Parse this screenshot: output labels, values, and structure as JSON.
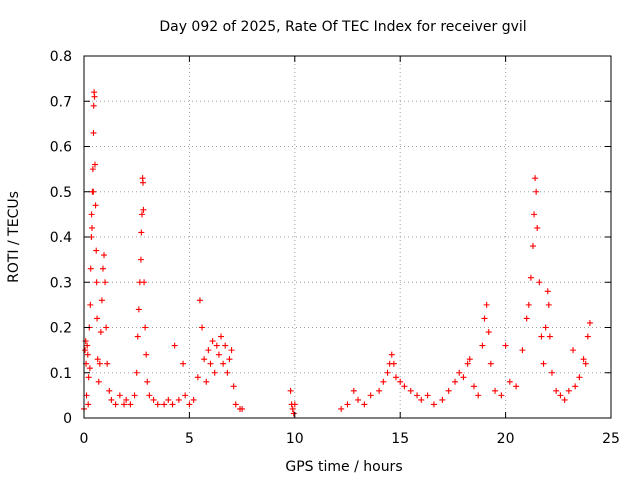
{
  "chart_data": {
    "type": "scatter",
    "title": "Day 092 of 2025, Rate Of TEC Index for receiver gvil",
    "xlabel": "GPS time / hours",
    "ylabel": "ROTI / TECUs",
    "xlim": [
      0,
      25
    ],
    "ylim": [
      0,
      0.8
    ],
    "xticks": [
      0,
      5,
      10,
      15,
      20,
      25
    ],
    "xtick_labels": [
      "0",
      "5",
      "10",
      "15",
      "20",
      "25"
    ],
    "yticks": [
      0,
      0.1,
      0.2,
      0.3,
      0.4,
      0.5,
      0.6,
      0.7,
      0.8
    ],
    "ytick_labels": [
      "0",
      "0.1",
      "0.2",
      "0.3",
      "0.4",
      "0.5",
      "0.6",
      "0.7",
      "0.8"
    ],
    "grid": true,
    "marker": "+",
    "color": "#ff0000",
    "series": [
      {
        "name": "ROTI",
        "points": [
          [
            0.0,
            0.02
          ],
          [
            0.05,
            0.15
          ],
          [
            0.08,
            0.17
          ],
          [
            0.1,
            0.12
          ],
          [
            0.12,
            0.05
          ],
          [
            0.15,
            0.16
          ],
          [
            0.18,
            0.14
          ],
          [
            0.2,
            0.03
          ],
          [
            0.22,
            0.09
          ],
          [
            0.25,
            0.2
          ],
          [
            0.28,
            0.11
          ],
          [
            0.3,
            0.25
          ],
          [
            0.32,
            0.33
          ],
          [
            0.35,
            0.4
          ],
          [
            0.36,
            0.45
          ],
          [
            0.38,
            0.42
          ],
          [
            0.4,
            0.5
          ],
          [
            0.42,
            0.55
          ],
          [
            0.44,
            0.5
          ],
          [
            0.45,
            0.63
          ],
          [
            0.46,
            0.69
          ],
          [
            0.48,
            0.72
          ],
          [
            0.5,
            0.71
          ],
          [
            0.52,
            0.56
          ],
          [
            0.55,
            0.47
          ],
          [
            0.58,
            0.37
          ],
          [
            0.6,
            0.3
          ],
          [
            0.62,
            0.22
          ],
          [
            0.65,
            0.13
          ],
          [
            0.7,
            0.08
          ],
          [
            0.75,
            0.12
          ],
          [
            0.8,
            0.19
          ],
          [
            0.85,
            0.26
          ],
          [
            0.9,
            0.33
          ],
          [
            0.95,
            0.36
          ],
          [
            1.0,
            0.3
          ],
          [
            1.05,
            0.2
          ],
          [
            1.1,
            0.12
          ],
          [
            1.2,
            0.06
          ],
          [
            1.3,
            0.04
          ],
          [
            1.5,
            0.03
          ],
          [
            1.7,
            0.05
          ],
          [
            1.9,
            0.03
          ],
          [
            2.0,
            0.04
          ],
          [
            2.2,
            0.03
          ],
          [
            2.4,
            0.05
          ],
          [
            2.5,
            0.1
          ],
          [
            2.55,
            0.18
          ],
          [
            2.6,
            0.24
          ],
          [
            2.65,
            0.3
          ],
          [
            2.7,
            0.35
          ],
          [
            2.72,
            0.41
          ],
          [
            2.75,
            0.45
          ],
          [
            2.78,
            0.53
          ],
          [
            2.8,
            0.52
          ],
          [
            2.82,
            0.46
          ],
          [
            2.85,
            0.3
          ],
          [
            2.9,
            0.2
          ],
          [
            2.95,
            0.14
          ],
          [
            3.0,
            0.08
          ],
          [
            3.1,
            0.05
          ],
          [
            3.3,
            0.04
          ],
          [
            3.5,
            0.03
          ],
          [
            3.8,
            0.03
          ],
          [
            4.0,
            0.04
          ],
          [
            4.2,
            0.03
          ],
          [
            4.3,
            0.16
          ],
          [
            4.5,
            0.04
          ],
          [
            4.7,
            0.12
          ],
          [
            4.8,
            0.05
          ],
          [
            5.0,
            0.03
          ],
          [
            5.2,
            0.04
          ],
          [
            5.4,
            0.09
          ],
          [
            5.5,
            0.26
          ],
          [
            5.6,
            0.2
          ],
          [
            5.7,
            0.13
          ],
          [
            5.8,
            0.08
          ],
          [
            5.9,
            0.15
          ],
          [
            6.0,
            0.12
          ],
          [
            6.1,
            0.17
          ],
          [
            6.2,
            0.1
          ],
          [
            6.3,
            0.16
          ],
          [
            6.4,
            0.14
          ],
          [
            6.5,
            0.18
          ],
          [
            6.6,
            0.12
          ],
          [
            6.7,
            0.16
          ],
          [
            6.8,
            0.1
          ],
          [
            6.9,
            0.13
          ],
          [
            7.0,
            0.15
          ],
          [
            7.1,
            0.07
          ],
          [
            7.2,
            0.03
          ],
          [
            7.4,
            0.02
          ],
          [
            7.5,
            0.02
          ],
          [
            9.8,
            0.06
          ],
          [
            9.85,
            0.03
          ],
          [
            9.9,
            0.02
          ],
          [
            9.95,
            0.01
          ],
          [
            10.0,
            0.03
          ],
          [
            12.2,
            0.02
          ],
          [
            12.5,
            0.03
          ],
          [
            12.8,
            0.06
          ],
          [
            13.0,
            0.04
          ],
          [
            13.3,
            0.03
          ],
          [
            13.6,
            0.05
          ],
          [
            14.0,
            0.06
          ],
          [
            14.2,
            0.08
          ],
          [
            14.4,
            0.1
          ],
          [
            14.5,
            0.12
          ],
          [
            14.6,
            0.14
          ],
          [
            14.7,
            0.12
          ],
          [
            14.8,
            0.09
          ],
          [
            15.0,
            0.08
          ],
          [
            15.2,
            0.07
          ],
          [
            15.5,
            0.06
          ],
          [
            15.8,
            0.05
          ],
          [
            16.0,
            0.04
          ],
          [
            16.3,
            0.05
          ],
          [
            16.6,
            0.03
          ],
          [
            17.0,
            0.04
          ],
          [
            17.3,
            0.06
          ],
          [
            17.6,
            0.08
          ],
          [
            17.8,
            0.1
          ],
          [
            18.0,
            0.09
          ],
          [
            18.2,
            0.12
          ],
          [
            18.3,
            0.13
          ],
          [
            18.5,
            0.07
          ],
          [
            18.7,
            0.05
          ],
          [
            18.9,
            0.16
          ],
          [
            19.0,
            0.22
          ],
          [
            19.1,
            0.25
          ],
          [
            19.2,
            0.19
          ],
          [
            19.3,
            0.12
          ],
          [
            19.5,
            0.06
          ],
          [
            19.8,
            0.05
          ],
          [
            20.0,
            0.16
          ],
          [
            20.2,
            0.08
          ],
          [
            20.5,
            0.07
          ],
          [
            20.8,
            0.15
          ],
          [
            21.0,
            0.22
          ],
          [
            21.1,
            0.25
          ],
          [
            21.2,
            0.31
          ],
          [
            21.3,
            0.38
          ],
          [
            21.35,
            0.45
          ],
          [
            21.4,
            0.53
          ],
          [
            21.45,
            0.5
          ],
          [
            21.5,
            0.42
          ],
          [
            21.6,
            0.3
          ],
          [
            21.7,
            0.18
          ],
          [
            21.8,
            0.12
          ],
          [
            21.9,
            0.2
          ],
          [
            22.0,
            0.28
          ],
          [
            22.05,
            0.25
          ],
          [
            22.1,
            0.18
          ],
          [
            22.2,
            0.1
          ],
          [
            22.4,
            0.06
          ],
          [
            22.6,
            0.05
          ],
          [
            22.8,
            0.04
          ],
          [
            23.0,
            0.06
          ],
          [
            23.2,
            0.15
          ],
          [
            23.3,
            0.07
          ],
          [
            23.5,
            0.09
          ],
          [
            23.7,
            0.13
          ],
          [
            23.8,
            0.12
          ],
          [
            23.9,
            0.18
          ],
          [
            24.0,
            0.21
          ]
        ]
      }
    ]
  }
}
